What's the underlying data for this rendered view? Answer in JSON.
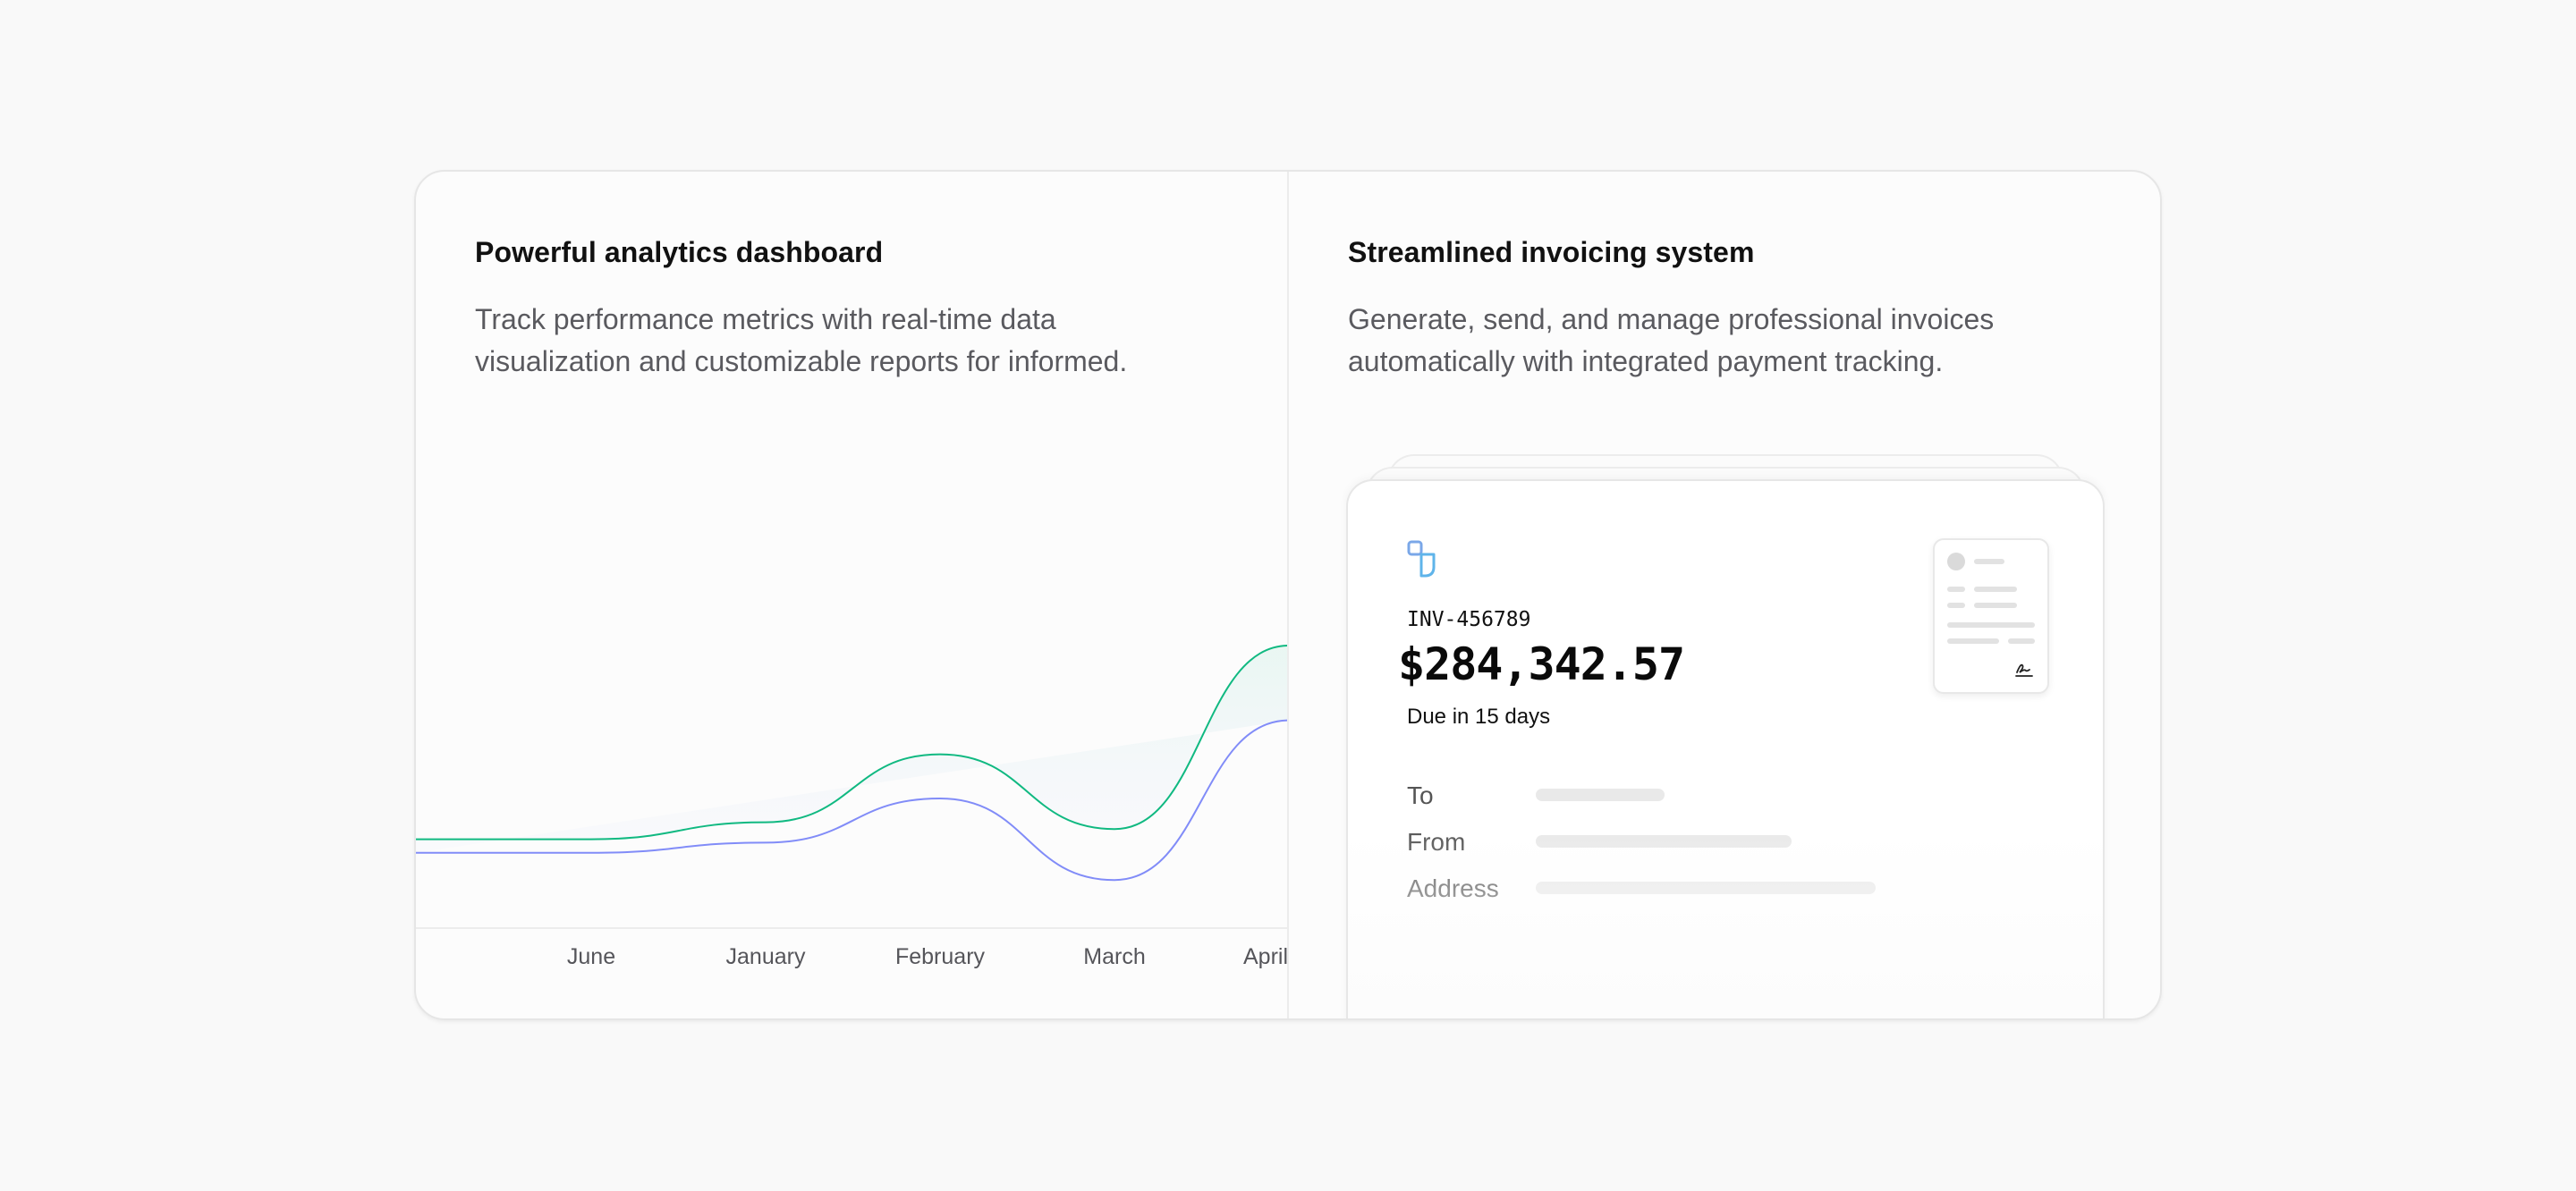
{
  "analytics": {
    "title": "Powerful analytics dashboard",
    "description": "Track performance metrics with real-time data visualization and customizable reports for informed."
  },
  "invoicing": {
    "title": "Streamlined invoicing system",
    "description": "Generate, send, and manage professional invoices automatically with integrated payment tracking."
  },
  "invoice": {
    "number": "INV-456789",
    "amount": "$284,342.57",
    "due": "Due in 15 days",
    "fields": [
      {
        "label": "To"
      },
      {
        "label": "From"
      },
      {
        "label": "Address"
      }
    ],
    "logo_icon": "logo-icon",
    "signature_icon": "signature-icon"
  },
  "colors": {
    "series_green": "#10b981",
    "series_blue": "#818cf8",
    "icon_blue": "#60a5fa"
  },
  "chart_data": {
    "type": "line",
    "categories": [
      "June",
      "January",
      "February",
      "March",
      "April"
    ],
    "series": [
      {
        "values": [
          0.43,
          0.48,
          0.68,
          0.46,
          1.0
        ]
      },
      {
        "values": [
          0.39,
          0.42,
          0.55,
          0.31,
          0.78
        ]
      }
    ],
    "ylim": [
      0,
      1
    ],
    "grid": false,
    "legend": "none"
  }
}
